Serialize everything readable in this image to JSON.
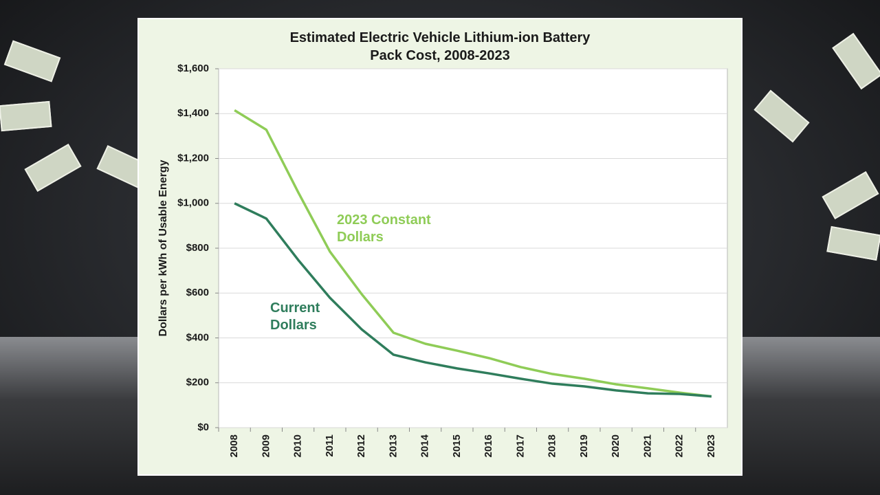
{
  "chart_data": {
    "type": "line",
    "title": "Estimated Electric Vehicle Lithium-ion Battery Pack Cost, 2008-2023",
    "y_label": "Dollars per kWh of Usable Energy",
    "categories": [
      "2008",
      "2009",
      "2010",
      "2011",
      "2012",
      "2013",
      "2014",
      "2015",
      "2016",
      "2017",
      "2018",
      "2019",
      "2020",
      "2021",
      "2022",
      "2023"
    ],
    "series": [
      {
        "name": "2023 Constant Dollars",
        "color": "#8fcc57",
        "values": [
          1415,
          1328,
          1050,
          785,
          595,
          423,
          374,
          343,
          310,
          270,
          239,
          218,
          193,
          175,
          156,
          139
        ]
      },
      {
        "name": "Current Dollars",
        "color": "#2f7d5c",
        "values": [
          1000,
          932,
          748,
          579,
          438,
          325,
          291,
          264,
          242,
          218,
          196,
          184,
          166,
          153,
          150,
          139
        ]
      }
    ],
    "ylim": [
      0,
      1600
    ],
    "yticks": [
      {
        "value": 0,
        "label": "$0"
      },
      {
        "value": 200,
        "label": "$200"
      },
      {
        "value": 400,
        "label": "$400"
      },
      {
        "value": 600,
        "label": "$600"
      },
      {
        "value": 800,
        "label": "$800"
      },
      {
        "value": 1000,
        "label": "$1,000"
      },
      {
        "value": 1200,
        "label": "$1,200"
      },
      {
        "value": 1400,
        "label": "$1,400"
      },
      {
        "value": 1600,
        "label": "$1,600"
      }
    ],
    "grid": true
  }
}
